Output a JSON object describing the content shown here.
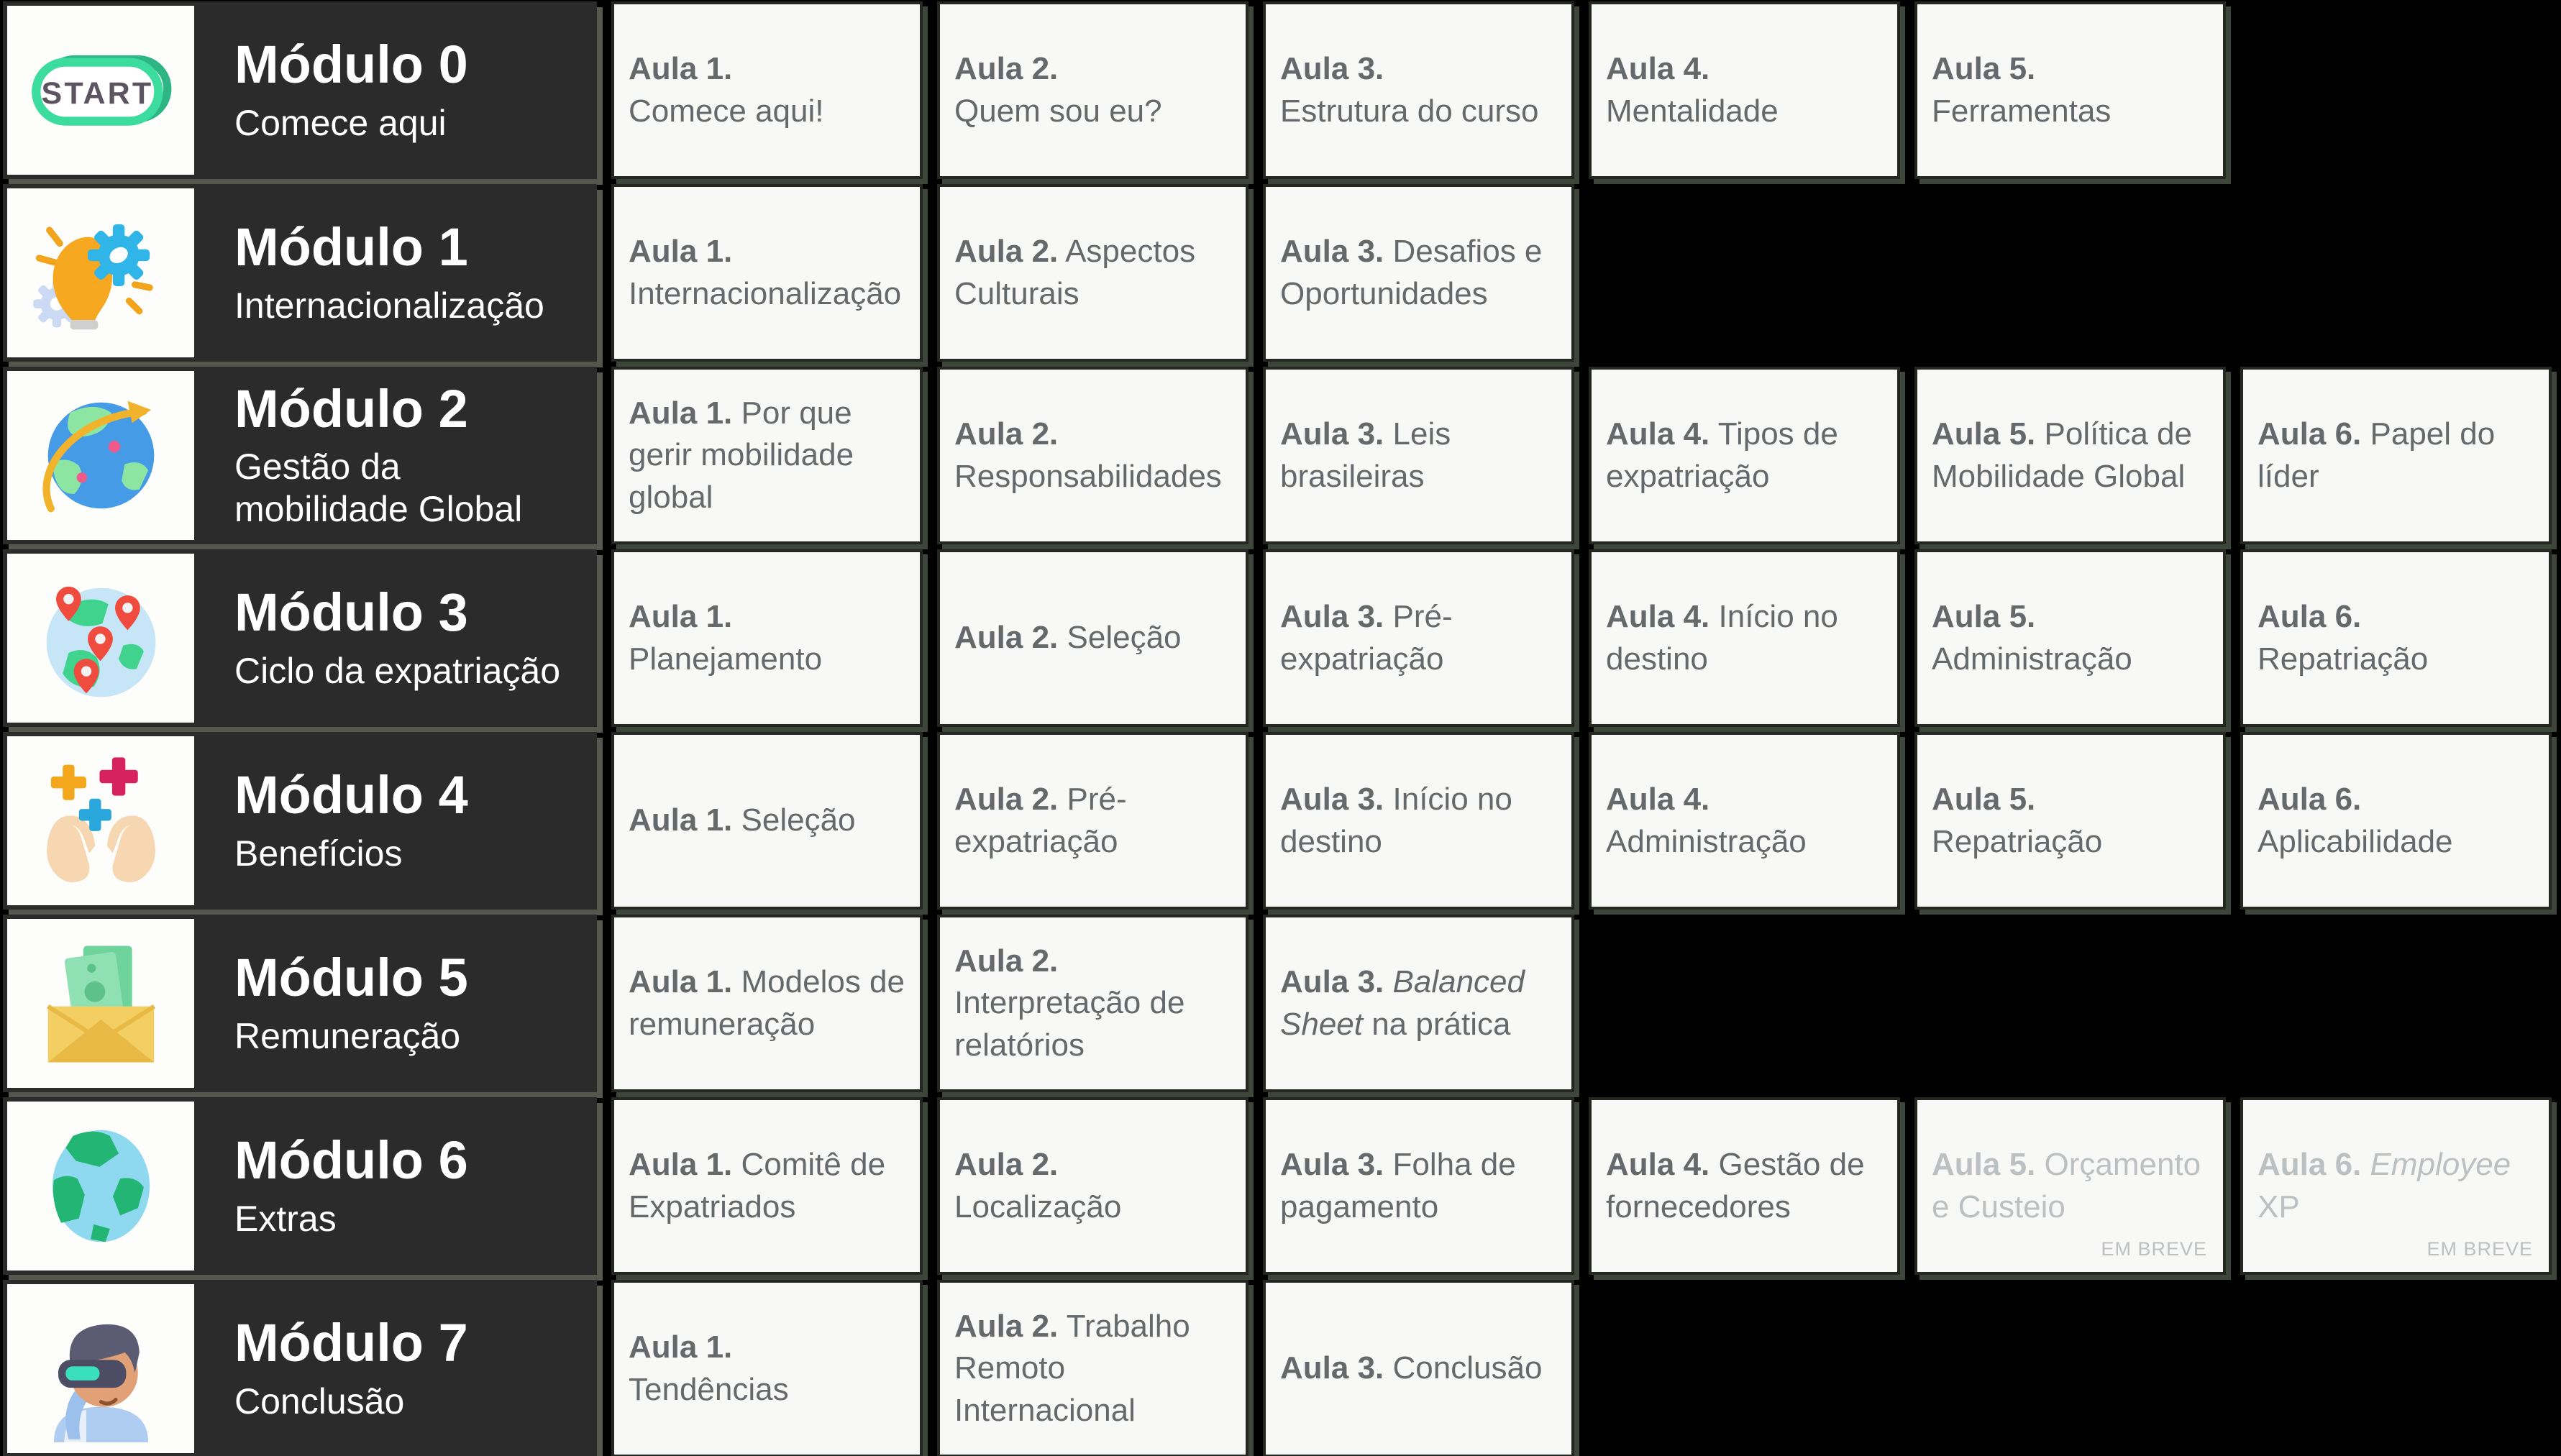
{
  "theme": {
    "page_bg": "#000000",
    "module_bg": "#2b2b2b",
    "module_text": "#ffffff",
    "module_shadow": "#55574f",
    "icon_box_bg": "#fdfdfb",
    "card_bg": "#f8f9f7",
    "card_border": "#23271f",
    "card_shadow": "#3e453b",
    "card_text": "#66696c",
    "muted_text": "#bcc0c3",
    "start_green": "#3bdc9e"
  },
  "modules": [
    {
      "title": "Módulo 0",
      "subtitle": "Comece aqui",
      "icon": "start-badge-icon",
      "lessons": [
        {
          "segments": [
            {
              "text": "Aula 1.",
              "bold": true
            },
            {
              "text": "Comece aqui!",
              "newline": true
            }
          ]
        },
        {
          "segments": [
            {
              "text": "Aula 2.",
              "bold": true
            },
            {
              "text": "Quem sou eu?",
              "newline": true
            }
          ]
        },
        {
          "segments": [
            {
              "text": "Aula 3.",
              "bold": true
            },
            {
              "text": "Estrutura do curso",
              "newline": true
            }
          ]
        },
        {
          "segments": [
            {
              "text": "Aula 4.",
              "bold": true
            },
            {
              "text": "Mentalidade",
              "newline": true
            }
          ]
        },
        {
          "segments": [
            {
              "text": "Aula 5.",
              "bold": true
            },
            {
              "text": "Ferramentas",
              "newline": true
            }
          ]
        }
      ]
    },
    {
      "title": "Módulo 1",
      "subtitle": "Internacionalização",
      "icon": "idea-gear-icon",
      "lessons": [
        {
          "segments": [
            {
              "text": "Aula 1.",
              "bold": true
            },
            {
              "text": "Internacionalização",
              "newline": true
            }
          ]
        },
        {
          "segments": [
            {
              "text": "Aula 2.",
              "bold": true
            },
            {
              "text": " Aspectos Culturais"
            }
          ]
        },
        {
          "segments": [
            {
              "text": "Aula 3.",
              "bold": true
            },
            {
              "text": " Desafios e Oportunidades"
            }
          ]
        }
      ]
    },
    {
      "title": "Módulo 2",
      "subtitle": "Gestão da\nmobilidade Global",
      "icon": "globe-orbit-icon",
      "lessons": [
        {
          "segments": [
            {
              "text": "Aula 1.",
              "bold": true
            },
            {
              "text": " Por que gerir mobilidade global"
            }
          ]
        },
        {
          "segments": [
            {
              "text": "Aula 2.",
              "bold": true
            },
            {
              "text": "Responsabilidades",
              "newline": true
            }
          ]
        },
        {
          "segments": [
            {
              "text": "Aula 3.",
              "bold": true
            },
            {
              "text": " Leis brasileiras"
            }
          ]
        },
        {
          "segments": [
            {
              "text": "Aula 4.",
              "bold": true
            },
            {
              "text": " Tipos de expatriação"
            }
          ]
        },
        {
          "segments": [
            {
              "text": "Aula 5.",
              "bold": true
            },
            {
              "text": " Política de Mobilidade Global"
            }
          ]
        },
        {
          "segments": [
            {
              "text": "Aula 6.",
              "bold": true
            },
            {
              "text": " Papel do líder"
            }
          ]
        }
      ]
    },
    {
      "title": "Módulo 3",
      "subtitle": "Ciclo da expatriação",
      "icon": "globe-pins-icon",
      "lessons": [
        {
          "segments": [
            {
              "text": "Aula 1.",
              "bold": true
            },
            {
              "text": "Planejamento",
              "newline": true
            }
          ]
        },
        {
          "segments": [
            {
              "text": "Aula 2.",
              "bold": true
            },
            {
              "text": " Seleção"
            }
          ]
        },
        {
          "segments": [
            {
              "text": "Aula 3.",
              "bold": true
            },
            {
              "text": " Pré-expatriação"
            }
          ]
        },
        {
          "segments": [
            {
              "text": "Aula 4.",
              "bold": true
            },
            {
              "text": " Início no destino"
            }
          ]
        },
        {
          "segments": [
            {
              "text": "Aula 5.",
              "bold": true
            },
            {
              "text": "Administração",
              "newline": true
            }
          ]
        },
        {
          "segments": [
            {
              "text": "Aula 6.",
              "bold": true
            },
            {
              "text": "Repatriação",
              "newline": true
            }
          ]
        }
      ]
    },
    {
      "title": "Módulo 4",
      "subtitle": "Benefícios",
      "icon": "hands-benefits-icon",
      "lessons": [
        {
          "segments": [
            {
              "text": "Aula 1.",
              "bold": true
            },
            {
              "text": " Seleção"
            }
          ]
        },
        {
          "segments": [
            {
              "text": "Aula 2.",
              "bold": true
            },
            {
              "text": " Pré-expatriação"
            }
          ]
        },
        {
          "segments": [
            {
              "text": "Aula 3.",
              "bold": true
            },
            {
              "text": " Início no destino"
            }
          ]
        },
        {
          "segments": [
            {
              "text": "Aula 4.",
              "bold": true
            },
            {
              "text": "Administração",
              "newline": true
            }
          ]
        },
        {
          "segments": [
            {
              "text": "Aula 5.",
              "bold": true
            },
            {
              "text": "Repatriação",
              "newline": true
            }
          ]
        },
        {
          "segments": [
            {
              "text": "Aula 6.",
              "bold": true
            },
            {
              "text": "Aplicabilidade",
              "newline": true
            }
          ]
        }
      ]
    },
    {
      "title": "Módulo 5",
      "subtitle": "Remuneração",
      "icon": "money-envelope-icon",
      "lessons": [
        {
          "segments": [
            {
              "text": "Aula 1.",
              "bold": true
            },
            {
              "text": " Modelos de remuneração"
            }
          ]
        },
        {
          "segments": [
            {
              "text": "Aula 2.",
              "bold": true
            },
            {
              "text": "Interpretação de relatórios",
              "newline": true
            }
          ]
        },
        {
          "segments": [
            {
              "text": "Aula 3.",
              "bold": true
            },
            {
              "text": " Balanced Sheet",
              "italic": true
            },
            {
              "text": " na prática"
            }
          ]
        }
      ]
    },
    {
      "title": "Módulo 6",
      "subtitle": "Extras",
      "icon": "globe-icon",
      "lessons": [
        {
          "segments": [
            {
              "text": "Aula 1.",
              "bold": true
            },
            {
              "text": " Comitê de Expatriados"
            }
          ]
        },
        {
          "segments": [
            {
              "text": "Aula 2.",
              "bold": true
            },
            {
              "text": "Localização",
              "newline": true
            }
          ]
        },
        {
          "segments": [
            {
              "text": "Aula 3.",
              "bold": true
            },
            {
              "text": " Folha de pagamento"
            }
          ]
        },
        {
          "segments": [
            {
              "text": "Aula 4.",
              "bold": true
            },
            {
              "text": " Gestão de fornecedores"
            }
          ]
        },
        {
          "muted": true,
          "badge": "EM BREVE",
          "segments": [
            {
              "text": "Aula 5.",
              "bold": true
            },
            {
              "text": " Orçamento e Custeio"
            }
          ]
        },
        {
          "muted": true,
          "badge": "EM BREVE",
          "segments": [
            {
              "text": "Aula 6.",
              "bold": true
            },
            {
              "text": " Employee",
              "italic": true
            },
            {
              "text": " XP"
            }
          ]
        }
      ]
    },
    {
      "title": "Módulo 7",
      "subtitle": "Conclusão",
      "icon": "vr-person-icon",
      "lessons": [
        {
          "segments": [
            {
              "text": "Aula 1.",
              "bold": true
            },
            {
              "text": "Tendências",
              "newline": true
            }
          ]
        },
        {
          "segments": [
            {
              "text": "Aula 2.",
              "bold": true
            },
            {
              "text": " Trabalho Remoto Internacional"
            }
          ]
        },
        {
          "segments": [
            {
              "text": "Aula 3.",
              "bold": true
            },
            {
              "text": " Conclusão"
            }
          ]
        }
      ]
    }
  ]
}
